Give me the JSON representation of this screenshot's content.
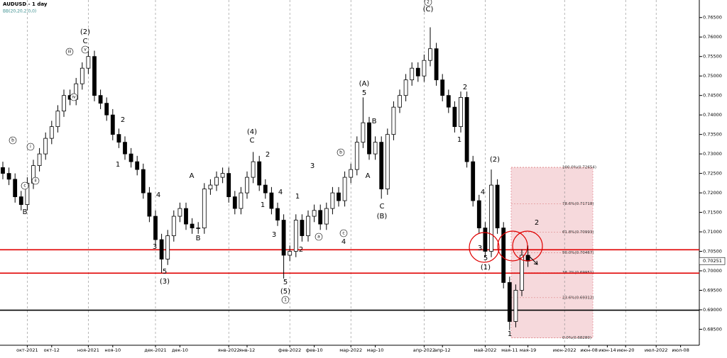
{
  "chart_data": {
    "type": "candlestick",
    "title": "AUDUSD - 1 day",
    "subtitle": "BB(20,20,2,0,0)",
    "ylim": [
      0.6809,
      0.7695
    ],
    "yticks": [
      {
        "value": 0.765,
        "label": "0.76500"
      },
      {
        "value": 0.76,
        "label": "0.76000"
      },
      {
        "value": 0.755,
        "label": "0.75500"
      },
      {
        "value": 0.75,
        "label": "0.75000"
      },
      {
        "value": 0.745,
        "label": "0.74500"
      },
      {
        "value": 0.74,
        "label": "0.74000"
      },
      {
        "value": 0.735,
        "label": "0.73500"
      },
      {
        "value": 0.73,
        "label": "0.73000"
      },
      {
        "value": 0.725,
        "label": "0.72500"
      },
      {
        "value": 0.72,
        "label": "0.72000"
      },
      {
        "value": 0.715,
        "label": "0.71500"
      },
      {
        "value": 0.71,
        "label": "0.71000"
      },
      {
        "value": 0.705,
        "label": "0.70500"
      },
      {
        "value": 0.7,
        "label": "0.70000"
      },
      {
        "value": 0.695,
        "label": "0.69500"
      },
      {
        "value": 0.69,
        "label": "0.69000"
      },
      {
        "value": 0.685,
        "label": "0.68500"
      }
    ],
    "last_price": {
      "value": 0.70251,
      "label": "0.70251"
    },
    "up_color": "#ffffff",
    "down_color": "#000000",
    "categories": [
      null,
      null,
      null,
      null,
      "окт-2021",
      null,
      null,
      null,
      "окт-12",
      null,
      null,
      null,
      null,
      null,
      "ноя-2021",
      null,
      null,
      null,
      "ноя-10",
      null,
      null,
      null,
      null,
      null,
      null,
      "дек-2021",
      null,
      null,
      null,
      "дек-10",
      null,
      null,
      null,
      null,
      null,
      null,
      null,
      "янв-2022",
      null,
      null,
      "янв-12",
      null,
      null,
      null,
      null,
      null,
      null,
      "фев-2022",
      null,
      null,
      null,
      "фев-10",
      null,
      null,
      null,
      null,
      null,
      "мар-2022",
      null,
      null,
      null,
      "мар-10",
      null,
      null,
      null,
      null,
      null,
      null,
      null,
      "апр-2022",
      null,
      null,
      "апр-12",
      null,
      null,
      null,
      null,
      null,
      null,
      "май-2022",
      null,
      null,
      null,
      "мая-11",
      null,
      null,
      "мая-19",
      null,
      null,
      null,
      null,
      null,
      "июн-2022",
      null,
      null,
      null,
      "июн-08",
      null,
      null,
      "июн-14",
      null,
      null,
      "июн-20",
      null,
      null,
      null,
      null,
      "июл-2022",
      null,
      null,
      null,
      "июл-08",
      null,
      null,
      null
    ],
    "ohlc": [
      [
        0.7265,
        0.728,
        0.7235,
        0.725
      ],
      [
        0.725,
        0.7265,
        0.722,
        0.7235
      ],
      [
        0.7235,
        0.725,
        0.7175,
        0.719
      ],
      [
        0.719,
        0.7205,
        0.7155,
        0.717
      ],
      [
        0.717,
        0.724,
        0.7155,
        0.7225
      ],
      [
        0.7225,
        0.7285,
        0.721,
        0.727
      ],
      [
        0.727,
        0.7315,
        0.7255,
        0.73
      ],
      [
        0.73,
        0.7355,
        0.7285,
        0.734
      ],
      [
        0.734,
        0.7385,
        0.7325,
        0.737
      ],
      [
        0.737,
        0.7425,
        0.7355,
        0.741
      ],
      [
        0.741,
        0.7465,
        0.7395,
        0.745
      ],
      [
        0.745,
        0.7465,
        0.7425,
        0.744
      ],
      [
        0.744,
        0.7495,
        0.7425,
        0.748
      ],
      [
        0.748,
        0.7535,
        0.7465,
        0.752
      ],
      [
        0.752,
        0.7575,
        0.7505,
        0.755
      ],
      [
        0.755,
        0.7565,
        0.7435,
        0.745
      ],
      [
        0.745,
        0.7465,
        0.7415,
        0.743
      ],
      [
        0.743,
        0.7445,
        0.7385,
        0.74
      ],
      [
        0.74,
        0.7415,
        0.7335,
        0.735
      ],
      [
        0.735,
        0.7365,
        0.7315,
        0.733
      ],
      [
        0.733,
        0.7345,
        0.7285,
        0.73
      ],
      [
        0.73,
        0.7315,
        0.7265,
        0.728
      ],
      [
        0.728,
        0.7295,
        0.7245,
        0.726
      ],
      [
        0.726,
        0.7275,
        0.7185,
        0.72
      ],
      [
        0.72,
        0.7215,
        0.7125,
        0.714
      ],
      [
        0.714,
        0.7155,
        0.7065,
        0.708
      ],
      [
        0.708,
        0.7095,
        0.6995,
        0.703
      ],
      [
        0.703,
        0.7105,
        0.7015,
        0.709
      ],
      [
        0.709,
        0.7155,
        0.7075,
        0.714
      ],
      [
        0.714,
        0.7175,
        0.7125,
        0.716
      ],
      [
        0.716,
        0.7175,
        0.7105,
        0.712
      ],
      [
        0.712,
        0.7135,
        0.7095,
        0.711
      ],
      [
        0.711,
        0.7125,
        0.7095,
        0.711
      ],
      [
        0.711,
        0.7225,
        0.7095,
        0.721
      ],
      [
        0.721,
        0.7235,
        0.7195,
        0.722
      ],
      [
        0.722,
        0.7255,
        0.7205,
        0.724
      ],
      [
        0.724,
        0.7265,
        0.7225,
        0.725
      ],
      [
        0.725,
        0.7265,
        0.7175,
        0.719
      ],
      [
        0.719,
        0.7205,
        0.7145,
        0.716
      ],
      [
        0.716,
        0.7215,
        0.7145,
        0.72
      ],
      [
        0.72,
        0.7255,
        0.7185,
        0.724
      ],
      [
        0.724,
        0.7305,
        0.7225,
        0.728
      ],
      [
        0.728,
        0.7295,
        0.7205,
        0.722
      ],
      [
        0.722,
        0.7235,
        0.7185,
        0.72
      ],
      [
        0.72,
        0.7215,
        0.7145,
        0.716
      ],
      [
        0.716,
        0.7175,
        0.7115,
        0.713
      ],
      [
        0.713,
        0.7145,
        0.698,
        0.704
      ],
      [
        0.704,
        0.7065,
        0.7025,
        0.705
      ],
      [
        0.705,
        0.7145,
        0.7035,
        0.713
      ],
      [
        0.713,
        0.7145,
        0.7075,
        0.709
      ],
      [
        0.709,
        0.7155,
        0.7075,
        0.714
      ],
      [
        0.714,
        0.717,
        0.7125,
        0.7155
      ],
      [
        0.7155,
        0.717,
        0.7105,
        0.712
      ],
      [
        0.712,
        0.7175,
        0.7105,
        0.716
      ],
      [
        0.716,
        0.7215,
        0.7145,
        0.72
      ],
      [
        0.72,
        0.7215,
        0.7165,
        0.718
      ],
      [
        0.718,
        0.7255,
        0.7165,
        0.724
      ],
      [
        0.724,
        0.7275,
        0.7225,
        0.726
      ],
      [
        0.726,
        0.7345,
        0.7245,
        0.733
      ],
      [
        0.733,
        0.7445,
        0.7315,
        0.738
      ],
      [
        0.738,
        0.7395,
        0.7285,
        0.73
      ],
      [
        0.73,
        0.7345,
        0.7285,
        0.733
      ],
      [
        0.733,
        0.7345,
        0.7185,
        0.721
      ],
      [
        0.721,
        0.7365,
        0.7195,
        0.735
      ],
      [
        0.735,
        0.7435,
        0.7335,
        0.742
      ],
      [
        0.742,
        0.7465,
        0.7405,
        0.745
      ],
      [
        0.745,
        0.7505,
        0.7435,
        0.749
      ],
      [
        0.749,
        0.7535,
        0.7475,
        0.752
      ],
      [
        0.752,
        0.7535,
        0.7485,
        0.75
      ],
      [
        0.75,
        0.7555,
        0.7485,
        0.754
      ],
      [
        0.754,
        0.7625,
        0.7525,
        0.757
      ],
      [
        0.757,
        0.7585,
        0.7475,
        0.749
      ],
      [
        0.749,
        0.7505,
        0.7435,
        0.745
      ],
      [
        0.745,
        0.7465,
        0.7405,
        0.742
      ],
      [
        0.742,
        0.7435,
        0.7355,
        0.737
      ],
      [
        0.737,
        0.746,
        0.7355,
        0.7445
      ],
      [
        0.7445,
        0.746,
        0.7265,
        0.728
      ],
      [
        0.728,
        0.7295,
        0.7165,
        0.718
      ],
      [
        0.718,
        0.7195,
        0.7095,
        0.711
      ],
      [
        0.711,
        0.7125,
        0.7035,
        0.705
      ],
      [
        0.705,
        0.726,
        0.7035,
        0.722
      ],
      [
        0.722,
        0.7235,
        0.7095,
        0.711
      ],
      [
        0.711,
        0.7125,
        0.6955,
        0.697
      ],
      [
        0.697,
        0.6985,
        0.6848,
        0.687
      ],
      [
        0.687,
        0.6965,
        0.6855,
        0.695
      ],
      [
        0.695,
        0.7055,
        0.6935,
        0.704
      ],
      [
        0.704,
        0.7065,
        0.701,
        0.7025
      ],
      null,
      null,
      null,
      null,
      null,
      null,
      null,
      null,
      null,
      null,
      null,
      null,
      null,
      null,
      null,
      null,
      null,
      null,
      null,
      null,
      null,
      null,
      null,
      null,
      null,
      null,
      null,
      null
    ],
    "hlines": [
      {
        "value": 0.7054,
        "color": "#e00000"
      },
      {
        "value": 0.6994,
        "color": "#e00000"
      },
      {
        "value": 0.6899,
        "color": "#000000"
      }
    ],
    "fib_levels": [
      {
        "value": 0.72654,
        "label": "100.0%(0.72654)"
      },
      {
        "value": 0.71718,
        "label": "78.6%(0.71718)"
      },
      {
        "value": 0.70993,
        "label": "61.8%(0.70993)"
      },
      {
        "value": 0.70467,
        "label": "50.0%(0.70467)"
      },
      {
        "value": 0.69951,
        "label": "38.2%(0.69951)"
      },
      {
        "value": 0.69312,
        "label": "23.6%(0.69312)"
      },
      {
        "value": 0.6828,
        "label": "0.0%(0.68280)"
      }
    ],
    "annotations": [
      "(2)",
      "C",
      "iii",
      "v",
      "iv",
      "b",
      "i",
      "ii",
      "c",
      "B",
      "2",
      "1",
      "4",
      "3",
      "5",
      "(3)",
      "A",
      "B",
      "(4)",
      "C",
      "2",
      "1",
      "4",
      "3",
      "1",
      "2",
      "3",
      "5",
      "(5)",
      "1",
      "a",
      "b",
      "c",
      "4",
      "(A)",
      "5",
      "B",
      "A",
      "C",
      "(B)",
      "2",
      "(C)",
      "2",
      "1",
      "(2)",
      "4",
      "3",
      "5",
      "(1)",
      "1",
      "2"
    ]
  }
}
